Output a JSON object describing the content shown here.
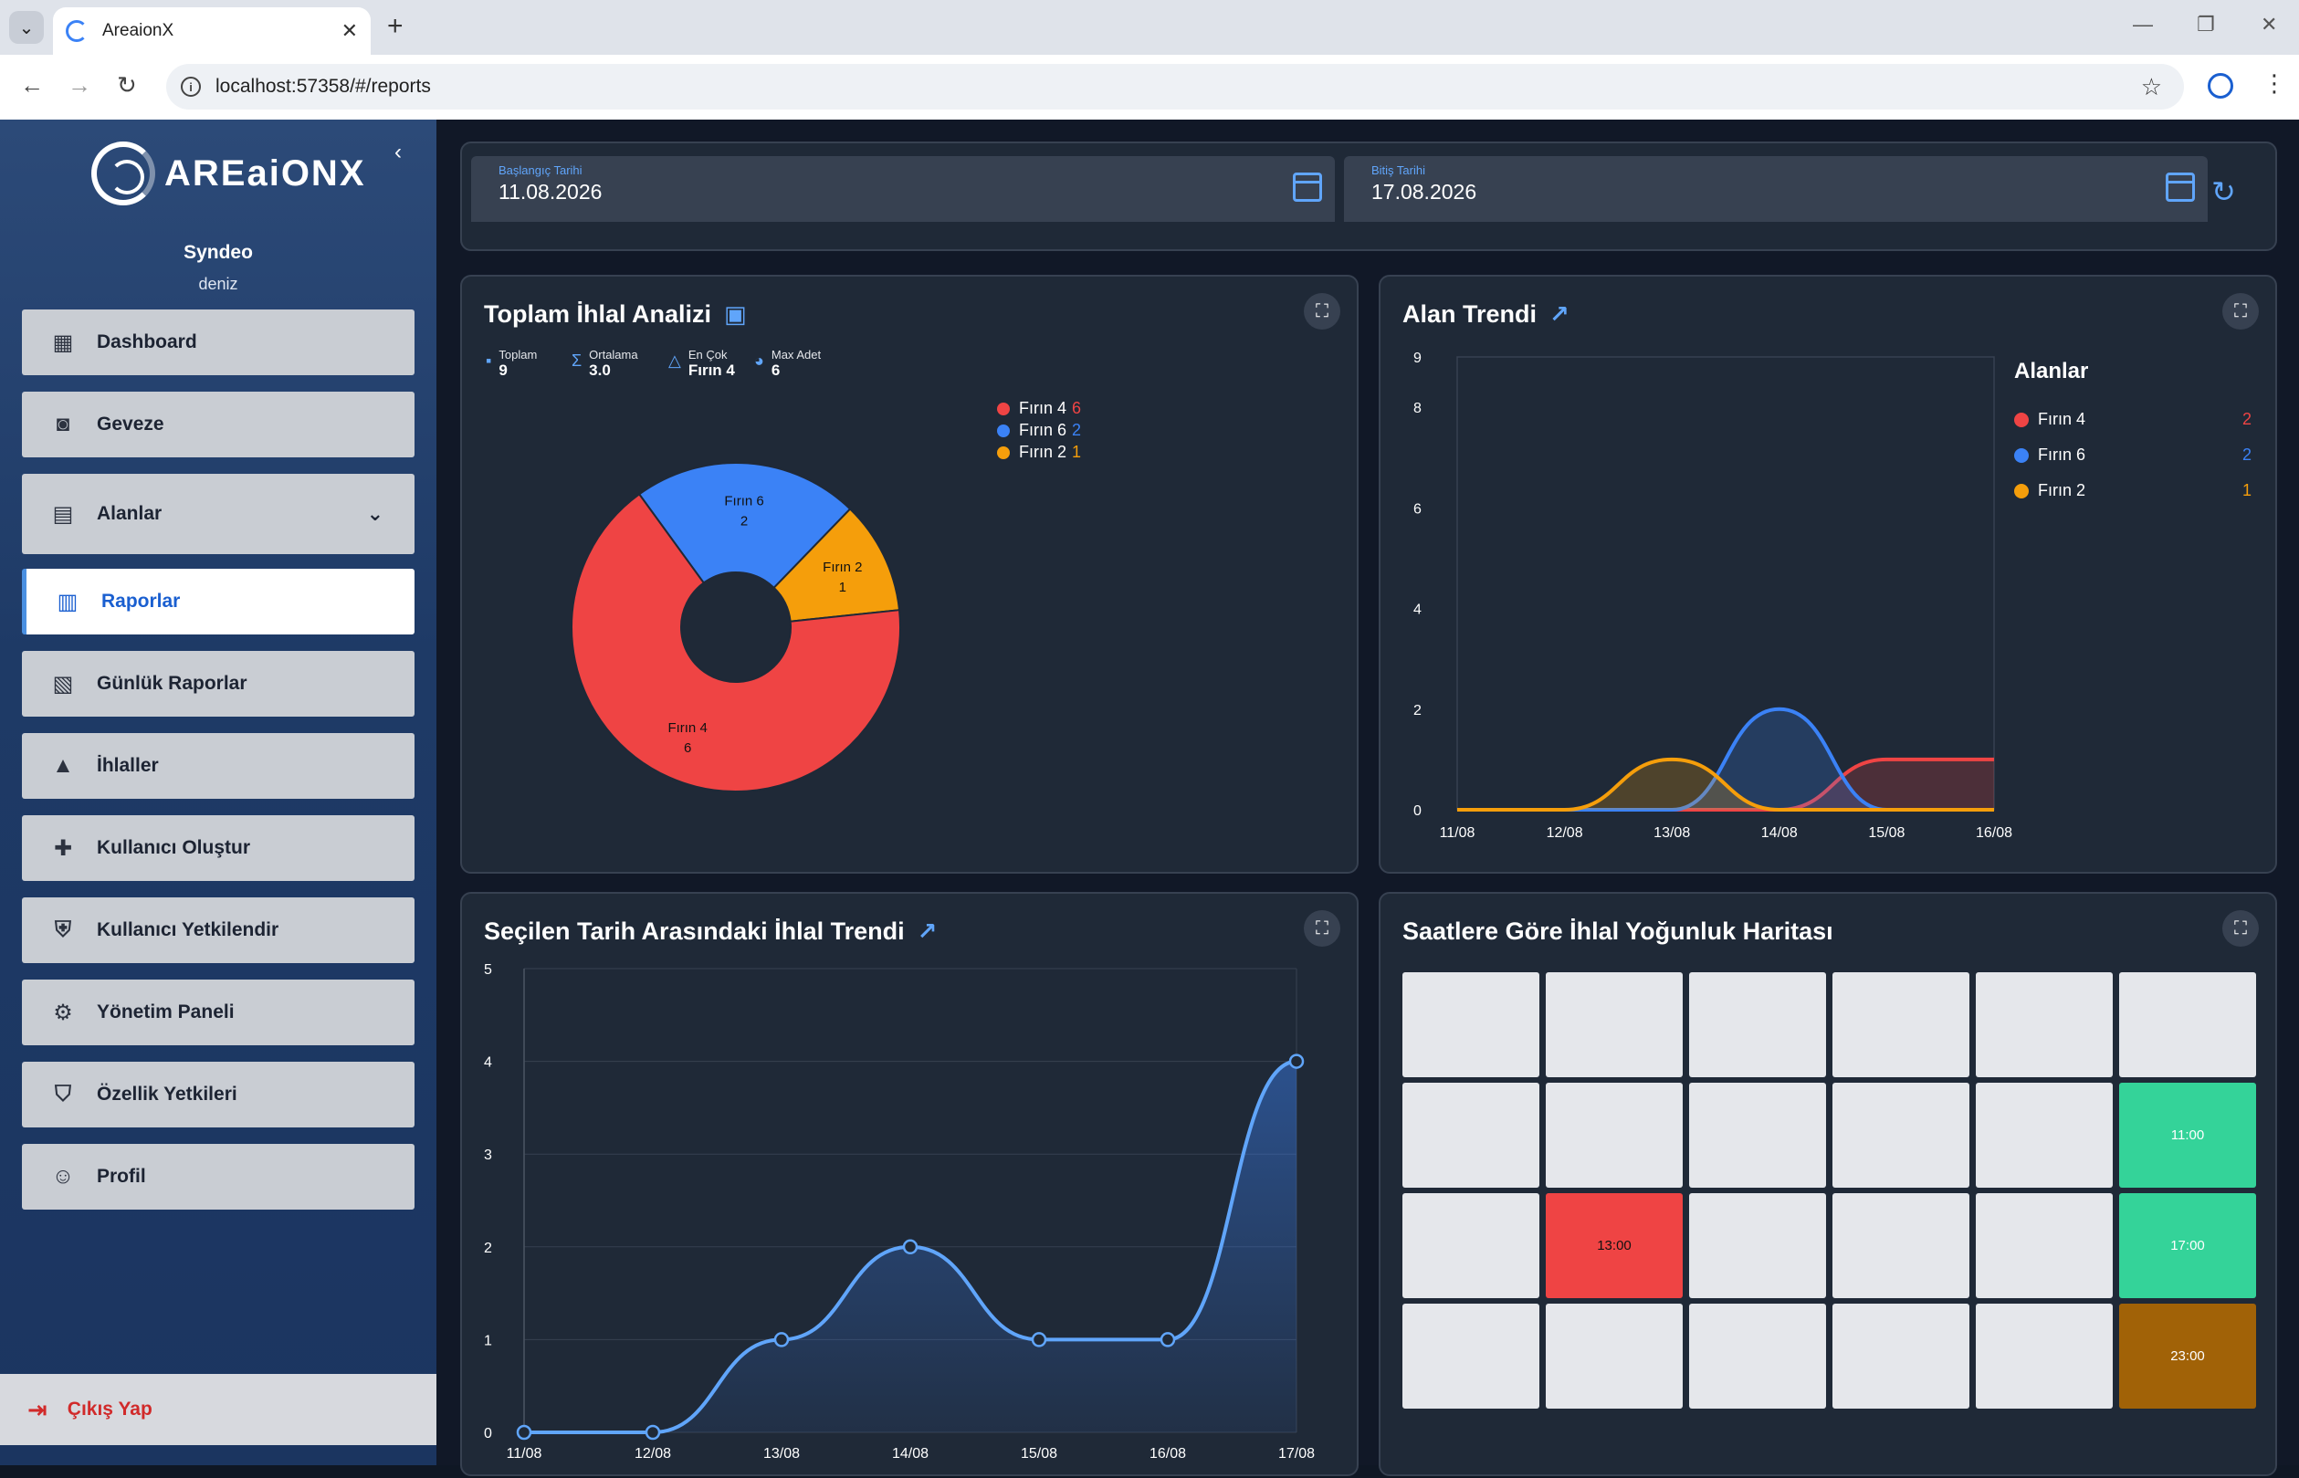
{
  "browser": {
    "tab_title": "AreaionX",
    "url": "localhost:57358/#/reports"
  },
  "sidebar": {
    "logo_text": "AREaiONX",
    "user_name": "Syndeo",
    "user_sub": "deniz",
    "items": [
      {
        "label": "Dashboard",
        "icon": "dashboard-icon"
      },
      {
        "label": "Geveze",
        "icon": "robot-icon"
      },
      {
        "label": "Alanlar",
        "icon": "settings-building-icon"
      },
      {
        "label": "Raporlar",
        "icon": "bar-chart-icon"
      },
      {
        "label": "Günlük Raporlar",
        "icon": "document-icon"
      },
      {
        "label": "İhlaller",
        "icon": "warning-icon"
      },
      {
        "label": "Kullanıcı Oluştur",
        "icon": "add-user-icon"
      },
      {
        "label": "Kullanıcı Yetkilendir",
        "icon": "shield-icon"
      },
      {
        "label": "Yönetim Paneli",
        "icon": "gear-icon"
      },
      {
        "label": "Özellik Yetkileri",
        "icon": "shield-lock-icon"
      },
      {
        "label": "Profil",
        "icon": "person-icon"
      }
    ],
    "logout_label": "Çıkış Yap"
  },
  "filters": {
    "start_label": "Başlangıç Tarihi",
    "start_value": "11.08.2026",
    "end_label": "Bitiş Tarihi",
    "end_value": "17.08.2026"
  },
  "violation_analysis": {
    "title": "Toplam İhlal Analizi",
    "stats": [
      {
        "label": "Toplam",
        "value": "9"
      },
      {
        "label": "Ortalama",
        "value": "3.0"
      },
      {
        "label": "En Çok",
        "value": "Fırın 4"
      },
      {
        "label": "Max Adet",
        "value": "6"
      }
    ]
  },
  "area_trend": {
    "title": "Alan Trendi",
    "legend_title": "Alanlar"
  },
  "date_trend": {
    "title": "Seçilen Tarih Arasındaki İhlal Trendi"
  },
  "heatmap": {
    "title": "Saatlere Göre İhlal Yoğunluk Haritası",
    "cells": [
      {
        "row": 1,
        "col": 5,
        "label": "11:00",
        "color": "#34d399"
      },
      {
        "row": 2,
        "col": 1,
        "label": "13:00",
        "color": "#ef4444"
      },
      {
        "row": 2,
        "col": 5,
        "label": "17:00",
        "color": "#34d399"
      },
      {
        "row": 3,
        "col": 5,
        "label": "23:00",
        "color": "#a16207"
      }
    ]
  },
  "colors": {
    "firin4": "#ef4444",
    "firin6": "#3b82f6",
    "firin2": "#f59e0b",
    "accent": "#60a5fa"
  },
  "chart_data": [
    {
      "type": "pie",
      "title": "Toplam İhlal Analizi",
      "categories": [
        "Fırın 4",
        "Fırın 6",
        "Fırın 2"
      ],
      "values": [
        6,
        2,
        1
      ],
      "legend_position": "top-right"
    },
    {
      "type": "area",
      "title": "Alan Trendi",
      "x": [
        "11/08",
        "12/08",
        "13/08",
        "14/08",
        "15/08",
        "16/08"
      ],
      "yticks": [
        0,
        2,
        4,
        6,
        8,
        9
      ],
      "ylim": [
        0,
        9
      ],
      "legend_title": "Alanlar",
      "series": [
        {
          "name": "Fırın 4",
          "total": 2,
          "values": [
            0,
            0,
            0,
            0,
            1,
            1
          ]
        },
        {
          "name": "Fırın 6",
          "total": 2,
          "values": [
            0,
            0,
            0,
            2,
            0,
            0
          ]
        },
        {
          "name": "Fırın 2",
          "total": 1,
          "values": [
            0,
            0,
            1,
            0,
            0,
            0
          ]
        }
      ]
    },
    {
      "type": "line",
      "title": "Seçilen Tarih Arasındaki İhlal Trendi",
      "x": [
        "11/08",
        "12/08",
        "13/08",
        "14/08",
        "15/08",
        "16/08",
        "17/08"
      ],
      "values": [
        0,
        0,
        1,
        2,
        1,
        1,
        4
      ],
      "yticks": [
        0,
        1,
        2,
        3,
        4,
        5
      ],
      "ylim": [
        0,
        5
      ]
    }
  ]
}
